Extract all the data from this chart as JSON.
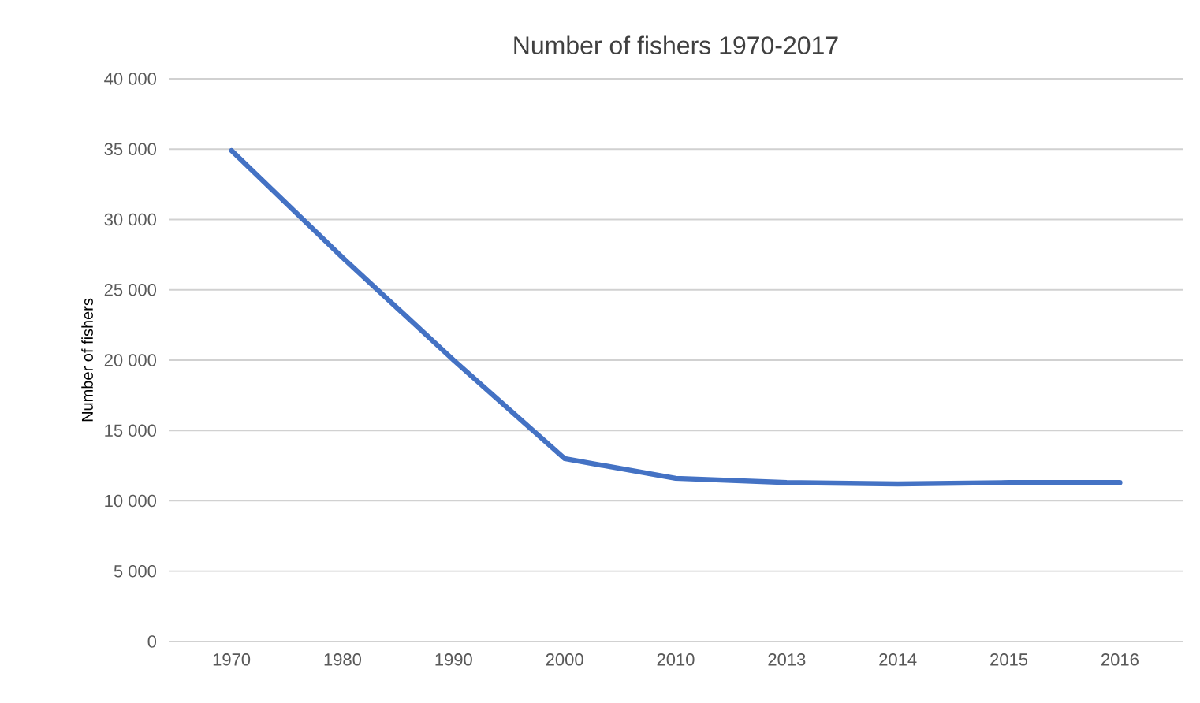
{
  "chart_data": {
    "type": "line",
    "title": "Number of fishers 1970-2017",
    "ylabel": "Number of fishers",
    "categories": [
      "1970",
      "1980",
      "1990",
      "2000",
      "2010",
      "2013",
      "2014",
      "2015",
      "2016"
    ],
    "series": [
      {
        "color": "#4472c4",
        "values": [
          34900,
          27300,
          20000,
          13000,
          11600,
          11300,
          11200,
          11300,
          11300
        ]
      }
    ],
    "ylim": [
      0,
      40000
    ],
    "yticks": [
      {
        "value": 0,
        "label": "0"
      },
      {
        "value": 5000,
        "label": "5 000"
      },
      {
        "value": 10000,
        "label": "10 000"
      },
      {
        "value": 15000,
        "label": "15 000"
      },
      {
        "value": 20000,
        "label": "20 000"
      },
      {
        "value": 25000,
        "label": "25 000"
      },
      {
        "value": 30000,
        "label": "30 000"
      },
      {
        "value": 35000,
        "label": "35 000"
      },
      {
        "value": 40000,
        "label": "40 000"
      }
    ],
    "grid": "y",
    "marker": "none",
    "line_style": "solid"
  }
}
